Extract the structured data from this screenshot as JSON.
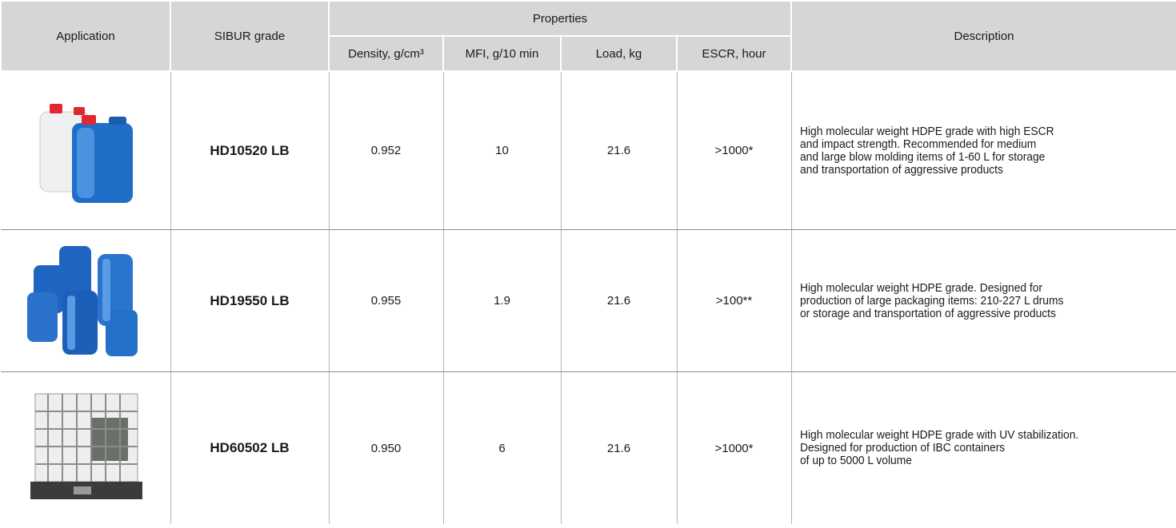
{
  "table": {
    "header": {
      "application": "Application",
      "grade": "SIBUR grade",
      "properties": "Properties",
      "columns": [
        "Density, g/cm³",
        "MFI, g/10 min",
        "Load, kg",
        "ESCR, hour"
      ],
      "description": "Description"
    },
    "rows": [
      {
        "grade": "HD10520 LB",
        "density": "0.952",
        "mfi": "10",
        "load": "21.6",
        "escr": ">1000*",
        "description": [
          "High molecular weight HDPE grade with high ESCR",
          "and impact strength. Recommended for medium",
          "and large blow molding items of 1-60 L for storage",
          "and transportation of aggressive products"
        ]
      },
      {
        "grade": "HD19550 LB",
        "density": "0.955",
        "mfi": "1.9",
        "load": "21.6",
        "escr": ">100**",
        "description": [
          "High molecular weight HDPE grade. Designed for",
          "production of large packaging items: 210-227 L drums",
          "or storage and transportation of aggressive products"
        ]
      },
      {
        "grade": "HD60502 LB",
        "density": "0.950",
        "mfi": "6",
        "load": "21.6",
        "escr": ">1000*",
        "description": [
          "High molecular weight HDPE grade with UV stabilization.",
          "Designed for production of IBC containers",
          "of up to 5000 L volume"
        ]
      }
    ]
  }
}
